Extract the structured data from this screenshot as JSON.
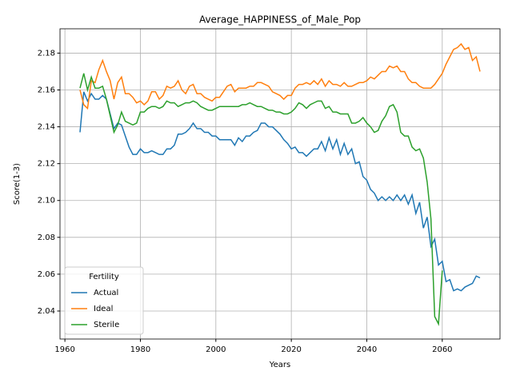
{
  "chart_data": {
    "type": "line",
    "title": "Average_HAPPINESS_of_Male_Pop",
    "x_label": "Years",
    "y_label": "Score(1-3)",
    "x": [
      1964,
      1965,
      1966,
      1967,
      1968,
      1969,
      1970,
      1971,
      1972,
      1973,
      1974,
      1975,
      1976,
      1977,
      1978,
      1979,
      1980,
      1981,
      1982,
      1983,
      1984,
      1985,
      1986,
      1987,
      1988,
      1989,
      1990,
      1991,
      1992,
      1993,
      1994,
      1995,
      1996,
      1997,
      1998,
      1999,
      2000,
      2001,
      2002,
      2003,
      2004,
      2005,
      2006,
      2007,
      2008,
      2009,
      2010,
      2011,
      2012,
      2013,
      2014,
      2015,
      2016,
      2017,
      2018,
      2019,
      2020,
      2021,
      2022,
      2023,
      2024,
      2025,
      2026,
      2027,
      2028,
      2029,
      2030,
      2031,
      2032,
      2033,
      2034,
      2035,
      2036,
      2037,
      2038,
      2039,
      2040,
      2041,
      2042,
      2043,
      2044,
      2045,
      2046,
      2047,
      2048,
      2049,
      2050,
      2051,
      2052,
      2053,
      2054,
      2055,
      2056,
      2057,
      2058,
      2059,
      2060,
      2061,
      2062,
      2063,
      2064,
      2065,
      2066,
      2067,
      2068,
      2069,
      2070
    ],
    "series": [
      {
        "name": "Actual",
        "color": "#1f77b4",
        "values": [
          2.137,
          2.159,
          2.154,
          2.158,
          2.155,
          2.155,
          2.157,
          2.155,
          2.147,
          2.139,
          2.142,
          2.141,
          2.135,
          2.129,
          2.125,
          2.125,
          2.128,
          2.126,
          2.126,
          2.127,
          2.126,
          2.125,
          2.125,
          2.128,
          2.128,
          2.13,
          2.136,
          2.136,
          2.137,
          2.139,
          2.142,
          2.139,
          2.139,
          2.137,
          2.137,
          2.135,
          2.135,
          2.133,
          2.133,
          2.133,
          2.133,
          2.13,
          2.134,
          2.132,
          2.135,
          2.135,
          2.137,
          2.138,
          2.142,
          2.142,
          2.14,
          2.14,
          2.138,
          2.136,
          2.133,
          2.131,
          2.128,
          2.129,
          2.126,
          2.126,
          2.124,
          2.126,
          2.128,
          2.128,
          2.132,
          2.127,
          2.134,
          2.128,
          2.133,
          2.125,
          2.131,
          2.125,
          2.128,
          2.12,
          2.121,
          2.113,
          2.111,
          2.106,
          2.104,
          2.1,
          2.102,
          2.1,
          2.102,
          2.1,
          2.103,
          2.1,
          2.103,
          2.098,
          2.103,
          2.093,
          2.099,
          2.085,
          2.091,
          2.075,
          2.079,
          2.065,
          2.067,
          2.056,
          2.057,
          2.051,
          2.052,
          2.051,
          2.053,
          2.054,
          2.055,
          2.059,
          2.058
        ]
      },
      {
        "name": "Ideal",
        "color": "#ff7f0e",
        "values": [
          2.16,
          2.152,
          2.15,
          2.165,
          2.164,
          2.171,
          2.176,
          2.17,
          2.165,
          2.155,
          2.164,
          2.167,
          2.158,
          2.158,
          2.156,
          2.153,
          2.154,
          2.152,
          2.154,
          2.159,
          2.159,
          2.155,
          2.157,
          2.162,
          2.161,
          2.162,
          2.165,
          2.16,
          2.158,
          2.162,
          2.163,
          2.158,
          2.158,
          2.156,
          2.155,
          2.154,
          2.156,
          2.156,
          2.159,
          2.162,
          2.163,
          2.159,
          2.161,
          2.161,
          2.161,
          2.162,
          2.162,
          2.164,
          2.164,
          2.163,
          2.162,
          2.159,
          2.158,
          2.157,
          2.155,
          2.157,
          2.157,
          2.161,
          2.163,
          2.163,
          2.164,
          2.163,
          2.165,
          2.163,
          2.166,
          2.162,
          2.165,
          2.163,
          2.163,
          2.162,
          2.164,
          2.162,
          2.162,
          2.163,
          2.164,
          2.164,
          2.165,
          2.167,
          2.166,
          2.168,
          2.17,
          2.17,
          2.173,
          2.172,
          2.173,
          2.17,
          2.17,
          2.166,
          2.164,
          2.164,
          2.162,
          2.161,
          2.161,
          2.161,
          2.163,
          2.166,
          2.169,
          2.174,
          2.178,
          2.182,
          2.183,
          2.185,
          2.182,
          2.183,
          2.176,
          2.178,
          2.17
        ]
      },
      {
        "name": "Sterile",
        "color": "#2ca02c",
        "values": [
          2.161,
          2.169,
          2.16,
          2.167,
          2.161,
          2.161,
          2.162,
          2.155,
          2.146,
          2.137,
          2.141,
          2.148,
          2.143,
          2.142,
          2.141,
          2.142,
          2.148,
          2.148,
          2.15,
          2.151,
          2.151,
          2.15,
          2.151,
          2.154,
          2.153,
          2.153,
          2.151,
          2.152,
          2.153,
          2.153,
          2.154,
          2.153,
          2.151,
          2.15,
          2.149,
          2.149,
          2.15,
          2.151,
          2.151,
          2.151,
          2.151,
          2.151,
          2.151,
          2.152,
          2.152,
          2.153,
          2.152,
          2.151,
          2.151,
          2.15,
          2.149,
          2.149,
          2.148,
          2.148,
          2.147,
          2.147,
          2.148,
          2.15,
          2.153,
          2.152,
          2.15,
          2.152,
          2.153,
          2.154,
          2.154,
          2.15,
          2.151,
          2.148,
          2.148,
          2.147,
          2.147,
          2.147,
          2.142,
          2.142,
          2.143,
          2.145,
          2.142,
          2.14,
          2.137,
          2.138,
          2.143,
          2.146,
          2.151,
          2.152,
          2.148,
          2.137,
          2.135,
          2.135,
          2.129,
          2.127,
          2.128,
          2.123,
          2.11,
          2.09,
          2.037,
          2.033,
          2.062,
          null,
          null,
          null,
          null,
          null,
          null,
          null,
          null,
          null,
          null
        ]
      }
    ],
    "legend_title": "Fertility",
    "legend": "lower left",
    "grid": true,
    "xlim": [
      1958.7,
      2075.3
    ],
    "xticks": [
      1960,
      1980,
      2000,
      2020,
      2040,
      2060
    ],
    "ylim": [
      2.0248,
      2.1932
    ],
    "yticks": [
      2.04,
      2.06,
      2.08,
      {
        "value": 2.1,
        "label": "2.10"
      },
      2.12,
      2.14,
      2.16,
      2.18
    ]
  }
}
